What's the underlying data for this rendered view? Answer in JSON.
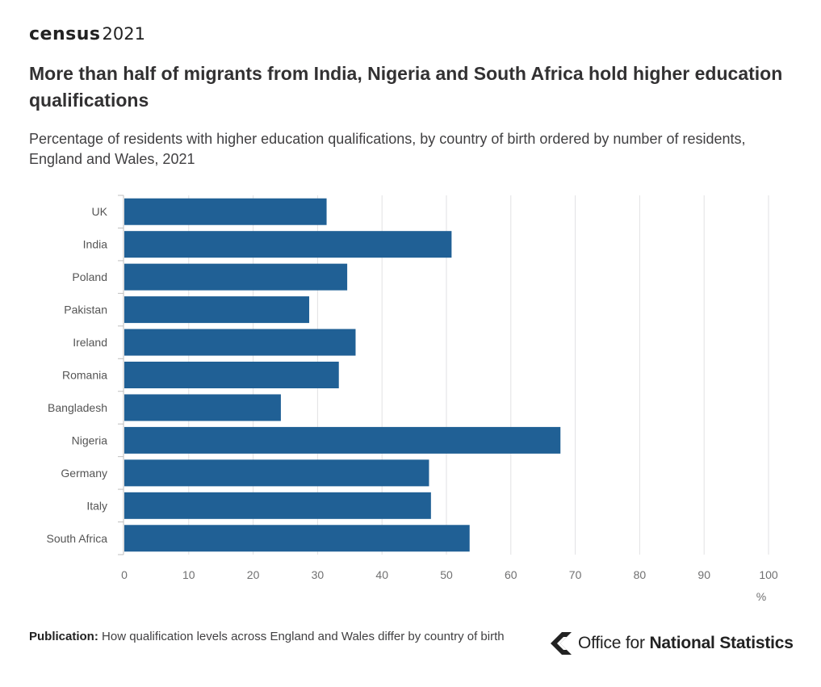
{
  "logo": {
    "word": "census",
    "year": "2021"
  },
  "title": "More than half of migrants from India, Nigeria and South Africa hold higher education qualifications",
  "subtitle": "Percentage of residents with higher education qualifications, by country of birth ordered by number of residents, England and Wales, 2021",
  "chart_data": {
    "type": "bar",
    "orientation": "horizontal",
    "categories": [
      "UK",
      "India",
      "Poland",
      "Pakistan",
      "Ireland",
      "Romania",
      "Bangladesh",
      "Nigeria",
      "Germany",
      "Italy",
      "South Africa"
    ],
    "values": [
      31.4,
      50.8,
      34.6,
      28.7,
      35.9,
      33.3,
      24.3,
      67.7,
      47.3,
      47.6,
      53.6
    ],
    "xlim": [
      0,
      100
    ],
    "xticks": [
      0,
      10,
      20,
      30,
      40,
      50,
      60,
      70,
      80,
      90,
      100
    ],
    "xlabel": "%",
    "bar_color": "#206095",
    "grid_color": "#e2e2e3"
  },
  "footer": {
    "publication_label": "Publication:",
    "publication_text": "How qualification levels across England and Wales differ by country of birth",
    "org_prefix": "Office for ",
    "org_name": "National Statistics"
  }
}
